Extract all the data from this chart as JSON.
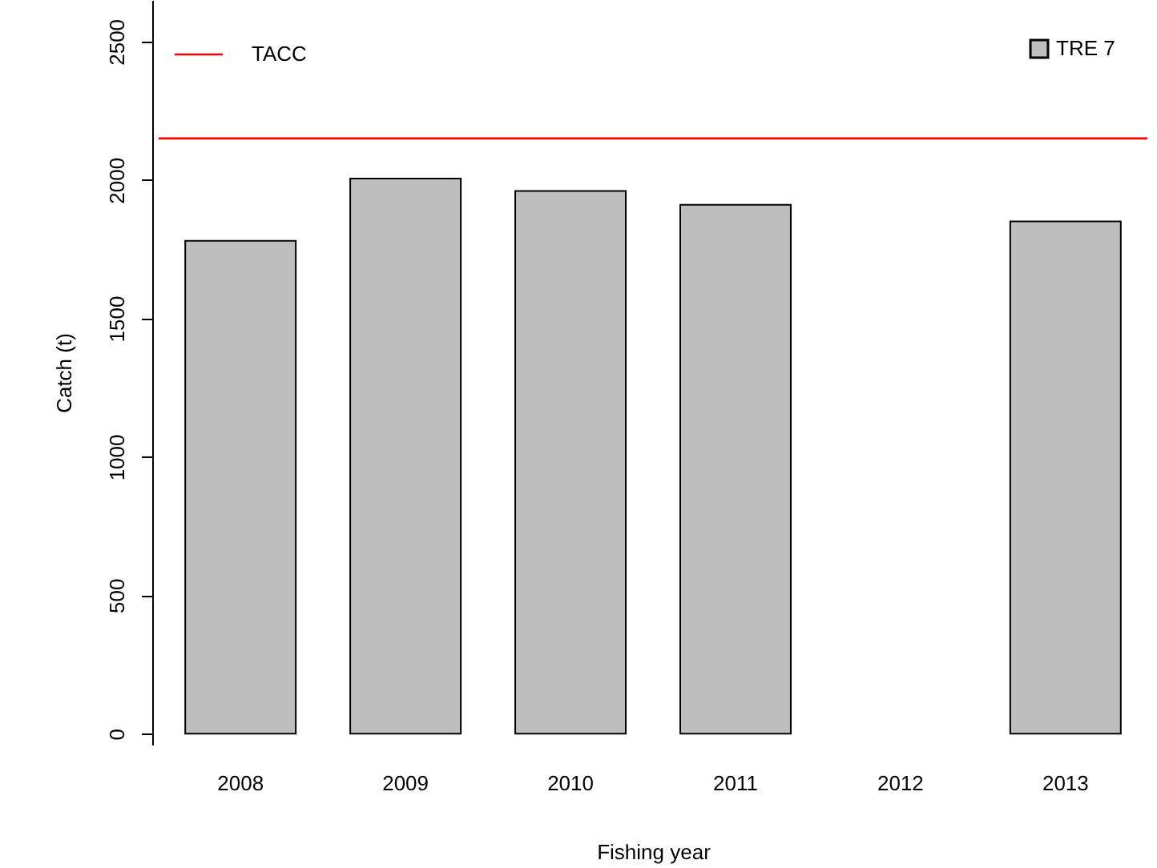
{
  "chart_data": {
    "type": "bar",
    "xlabel": "Fishing year",
    "ylabel": "Catch (t)",
    "categories": [
      "2008",
      "2009",
      "2010",
      "2011",
      "2012",
      "2013"
    ],
    "series": [
      {
        "name": "TRE 7",
        "color": "#bebebe",
        "values": [
          1780,
          2005,
          1960,
          1910,
          null,
          1850
        ]
      }
    ],
    "ylim": [
      -40,
      2650
    ],
    "yticks": [
      0,
      500,
      1000,
      1500,
      2000,
      2500
    ],
    "ref_lines": [
      {
        "axis": "y",
        "value": 2150,
        "label": "TACC",
        "color": "#ff0000",
        "line_style": "solid"
      }
    ],
    "legend": "top right",
    "grid": false
  }
}
